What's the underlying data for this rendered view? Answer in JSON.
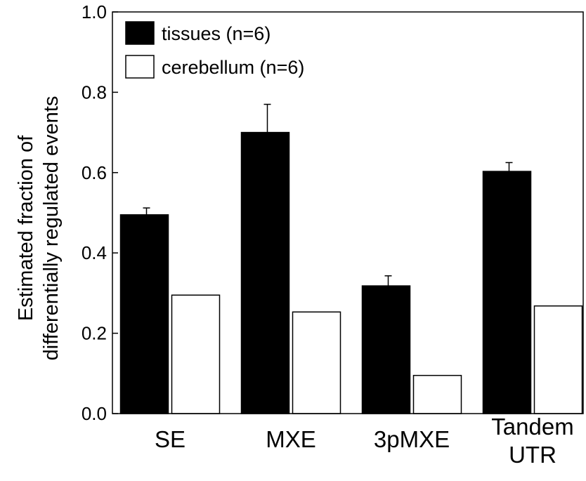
{
  "chart_data": {
    "type": "bar",
    "categories": [
      [
        "SE"
      ],
      [
        "MXE"
      ],
      [
        "3pMXE"
      ],
      [
        "Tandem",
        "UTR"
      ]
    ],
    "series": [
      {
        "name": "tissues (n=6)",
        "color": "#000000",
        "values": [
          0.495,
          0.7,
          0.318,
          0.603
        ],
        "errors": [
          0.017,
          0.07,
          0.025,
          0.022
        ]
      },
      {
        "name": "cerebellum (n=6)",
        "color": "#ffffff",
        "values": [
          0.295,
          0.253,
          0.095,
          0.268
        ]
      }
    ],
    "ylabel": [
      "Estimated fraction of",
      "differentially regulated events"
    ],
    "xlabel": "",
    "ylim": [
      0.0,
      1.0
    ],
    "yticks": [
      "0.0",
      "0.2",
      "0.4",
      "0.6",
      "0.8",
      "1.0"
    ],
    "grid": false,
    "legend_position": "top-left"
  }
}
